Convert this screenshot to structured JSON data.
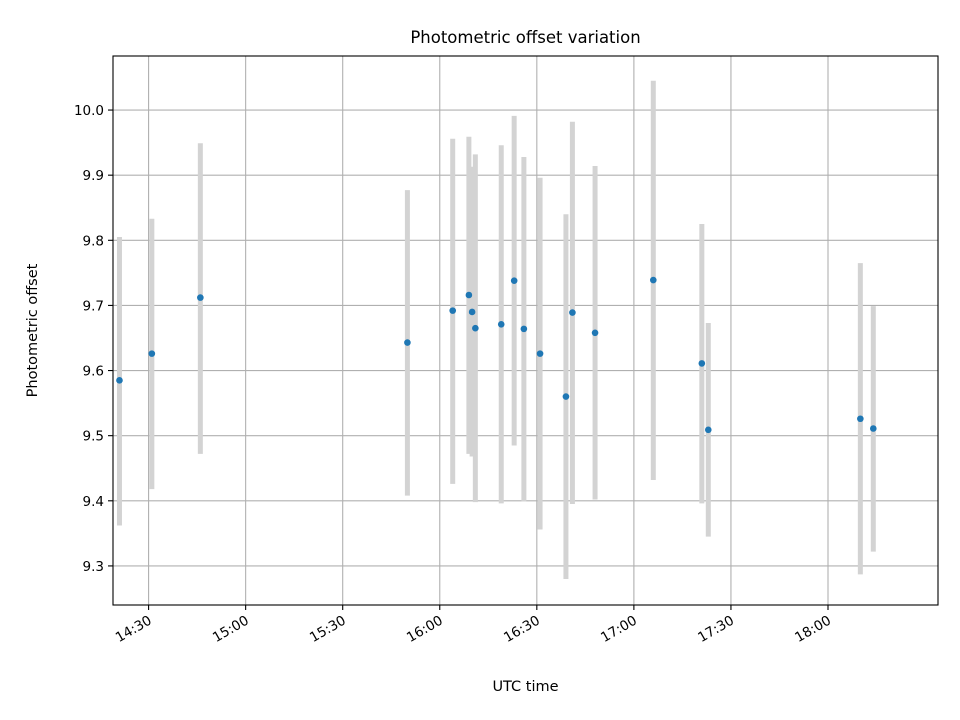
{
  "chart_data": {
    "type": "scatter",
    "title": "Photometric offset variation",
    "xlabel": "UTC time",
    "ylabel": "Photometric offset",
    "x_ticks": [
      "14:30",
      "15:00",
      "15:30",
      "16:00",
      "16:30",
      "17:00",
      "17:30",
      "18:00"
    ],
    "y_ticks": [
      "9.3",
      "9.4",
      "9.5",
      "9.6",
      "9.7",
      "9.8",
      "9.9",
      "10.0"
    ],
    "xlim": [
      "14:19",
      "18:34"
    ],
    "ylim": [
      9.24,
      10.083
    ],
    "grid": true,
    "marker_color": "#1f77b4",
    "errorbar_color": "#d3d3d3",
    "series": [
      {
        "points": [
          {
            "x": "14:21",
            "y": 9.585,
            "low": 9.362,
            "high": 9.805
          },
          {
            "x": "14:31",
            "y": 9.626,
            "low": 9.418,
            "high": 9.833
          },
          {
            "x": "14:46",
            "y": 9.712,
            "low": 9.472,
            "high": 9.949
          },
          {
            "x": "15:50",
            "y": 9.643,
            "low": 9.408,
            "high": 9.877
          },
          {
            "x": "16:04",
            "y": 9.692,
            "low": 9.426,
            "high": 9.956
          },
          {
            "x": "16:09",
            "y": 9.716,
            "low": 9.472,
            "high": 9.959
          },
          {
            "x": "16:10",
            "y": 9.69,
            "low": 9.468,
            "high": 9.913
          },
          {
            "x": "16:11",
            "y": 9.665,
            "low": 9.398,
            "high": 9.932
          },
          {
            "x": "16:19",
            "y": 9.671,
            "low": 9.396,
            "high": 9.946
          },
          {
            "x": "16:23",
            "y": 9.738,
            "low": 9.485,
            "high": 9.991
          },
          {
            "x": "16:26",
            "y": 9.664,
            "low": 9.399,
            "high": 9.928
          },
          {
            "x": "16:31",
            "y": 9.626,
            "low": 9.356,
            "high": 9.896
          },
          {
            "x": "16:39",
            "y": 9.56,
            "low": 9.28,
            "high": 9.84
          },
          {
            "x": "16:41",
            "y": 9.689,
            "low": 9.395,
            "high": 9.982
          },
          {
            "x": "16:48",
            "y": 9.658,
            "low": 9.402,
            "high": 9.914
          },
          {
            "x": "17:06",
            "y": 9.739,
            "low": 9.432,
            "high": 10.045
          },
          {
            "x": "17:21",
            "y": 9.611,
            "low": 9.396,
            "high": 9.825
          },
          {
            "x": "17:23",
            "y": 9.509,
            "low": 9.345,
            "high": 9.673
          },
          {
            "x": "18:10",
            "y": 9.526,
            "low": 9.287,
            "high": 9.765
          },
          {
            "x": "18:14",
            "y": 9.511,
            "low": 9.322,
            "high": 9.699
          }
        ]
      }
    ]
  }
}
